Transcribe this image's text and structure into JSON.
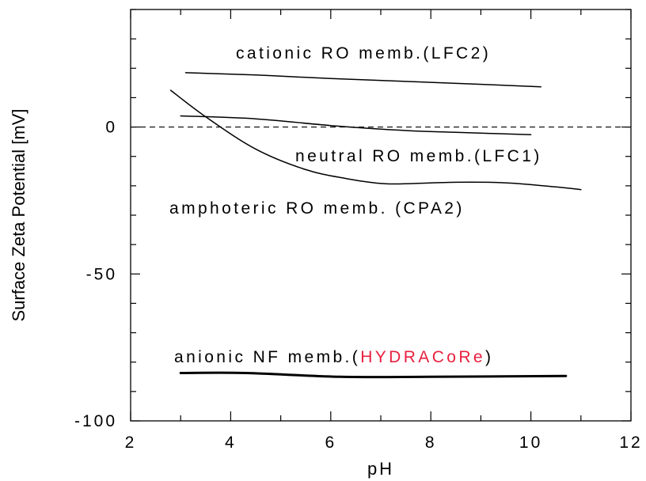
{
  "chart_data": {
    "type": "line",
    "title": "",
    "xlabel": "pH",
    "ylabel": "Surface Zeta Potential [mV]",
    "xlim": [
      2,
      12
    ],
    "ylim": [
      -100,
      40
    ],
    "x_ticks": [
      2,
      4,
      6,
      8,
      10,
      12
    ],
    "y_ticks": [
      -100,
      -50,
      0
    ],
    "x_tick_labels": [
      "2",
      "4",
      "6",
      "8",
      "10",
      "12"
    ],
    "y_tick_labels": [
      "-100",
      "-50",
      "0"
    ],
    "zero_line": true,
    "grid": false,
    "legend": "none",
    "series": [
      {
        "name": "cationic RO memb.(LFC2)",
        "color": "#000000",
        "x": [
          3.1,
          4.5,
          6.0,
          8.0,
          10.2
        ],
        "y": [
          18.5,
          17.7,
          16.5,
          15.2,
          13.7
        ]
      },
      {
        "name": "neutral RO memb.(LFC1)",
        "color": "#000000",
        "x": [
          3.0,
          4.5,
          6.0,
          7.5,
          8.5,
          10.0
        ],
        "y": [
          3.8,
          2.8,
          0.5,
          -1.2,
          -1.8,
          -2.6
        ]
      },
      {
        "name": "amphoteric RO memb. (CPA2)",
        "color": "#000000",
        "x": [
          2.8,
          3.5,
          4.5,
          5.5,
          6.3,
          7.0,
          7.5,
          8.5,
          9.5,
          10.5,
          11.0
        ],
        "y": [
          12.5,
          3.5,
          -7.5,
          -14.5,
          -17.5,
          -19.2,
          -19.3,
          -18.8,
          -19.0,
          -20.4,
          -21.3
        ]
      },
      {
        "name_parts": [
          "anionic NF memb.(",
          "HYDRACoRe",
          ")"
        ],
        "highlight_color": "#e8203f",
        "color": "#000000",
        "x": [
          3.0,
          4.3,
          6.2,
          8.0,
          10.7
        ],
        "y": [
          -83.7,
          -83.7,
          -85.0,
          -85.0,
          -84.7
        ]
      }
    ],
    "annotations": [
      "cationic RO memb.(LFC2)",
      "neutral RO memb.(LFC1)",
      "amphoteric RO memb. (CPA2)"
    ]
  }
}
